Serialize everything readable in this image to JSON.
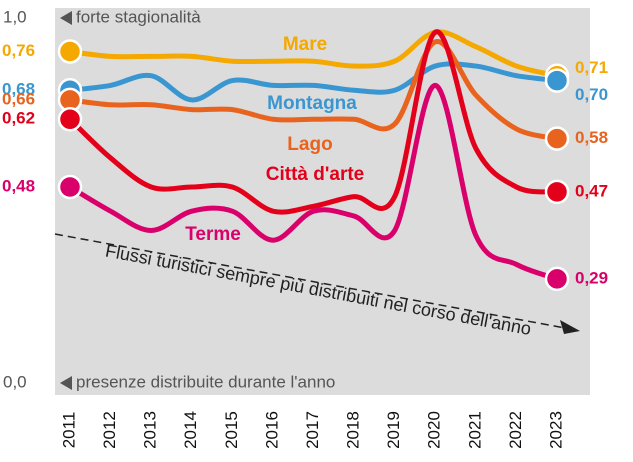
{
  "chart_data": {
    "type": "line",
    "top_label": "1,0",
    "top_note": "forte stagionalità",
    "bottom_label": "0,0",
    "bottom_note": "presenze distribuite durante l'anno",
    "annotation": "Flussi turistici sempre più distribuiti nel corso dell'anno",
    "categories": [
      "2011",
      "2012",
      "2013",
      "2014",
      "2015",
      "2016",
      "2017",
      "2018",
      "2019",
      "2020",
      "2021",
      "2022",
      "2023"
    ],
    "ylim": [
      0.05,
      0.85
    ],
    "series": [
      {
        "name": "Mare",
        "color": "#f5a800",
        "values": [
          0.76,
          0.75,
          0.75,
          0.75,
          0.74,
          0.74,
          0.74,
          0.73,
          0.74,
          0.8,
          0.77,
          0.73,
          0.71
        ],
        "value_labels": [
          "0,76",
          null,
          null,
          null,
          null,
          null,
          null,
          null,
          null,
          null,
          null,
          null,
          "0,71"
        ]
      },
      {
        "name": "Montagna",
        "color": "#3a96d0",
        "values": [
          0.68,
          0.69,
          0.71,
          0.66,
          0.7,
          0.69,
          0.69,
          0.68,
          0.68,
          0.73,
          0.73,
          0.71,
          0.7
        ],
        "value_labels": [
          "0,68",
          null,
          null,
          null,
          null,
          null,
          null,
          null,
          null,
          null,
          null,
          null,
          "0,70"
        ]
      },
      {
        "name": "Lago",
        "color": "#e8641e",
        "values": [
          0.66,
          0.65,
          0.65,
          0.64,
          0.64,
          0.62,
          0.62,
          0.62,
          0.61,
          0.78,
          0.67,
          0.6,
          0.58
        ],
        "value_labels": [
          "0,66",
          null,
          null,
          null,
          null,
          null,
          null,
          null,
          null,
          null,
          null,
          null,
          "0,58"
        ]
      },
      {
        "name": "Città d'arte",
        "color": "#e3001b",
        "values": [
          0.62,
          0.54,
          0.48,
          0.48,
          0.48,
          0.43,
          0.44,
          0.46,
          0.46,
          0.8,
          0.56,
          0.48,
          0.47
        ],
        "value_labels": [
          "0,62",
          null,
          null,
          null,
          null,
          null,
          null,
          null,
          null,
          null,
          null,
          null,
          "0,47"
        ]
      },
      {
        "name": "Terme",
        "color": "#d9006c",
        "values": [
          0.48,
          0.43,
          0.39,
          0.43,
          0.43,
          0.37,
          0.43,
          0.42,
          0.39,
          0.69,
          0.38,
          0.32,
          0.29
        ],
        "value_labels": [
          "0,48",
          null,
          null,
          null,
          null,
          null,
          null,
          null,
          null,
          null,
          null,
          null,
          "0,29"
        ]
      }
    ]
  }
}
